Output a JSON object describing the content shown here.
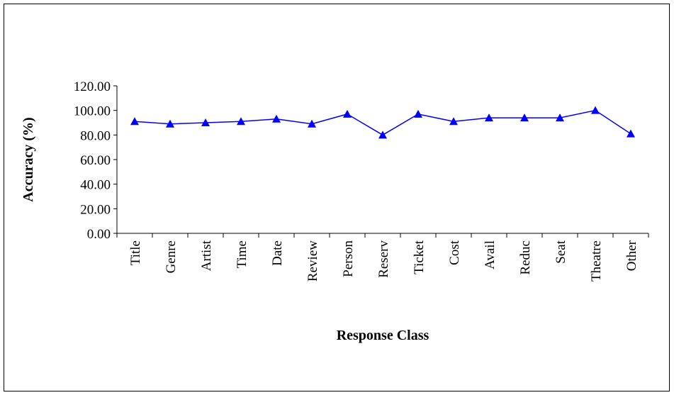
{
  "chart_data": {
    "type": "line",
    "x_label": "Response Class",
    "y_label": "Accuracy (%)",
    "categories": [
      "Title",
      "Genre",
      "Artist",
      "Time",
      "Date",
      "Review",
      "Person",
      "Reserv",
      "Ticket",
      "Cost",
      "Avail",
      "Reduc",
      "Seat",
      "Theatre",
      "Other"
    ],
    "series": [
      {
        "color": "#0000ff",
        "marker": "triangle",
        "values": [
          91,
          89,
          90,
          91,
          93,
          89,
          97,
          80,
          97,
          91,
          94,
          94,
          94,
          100,
          81
        ]
      }
    ],
    "ylim": [
      0,
      120
    ],
    "yticks": [
      {
        "value": 0,
        "label": "0.00"
      },
      {
        "value": 20,
        "label": "20.00"
      },
      {
        "value": 40,
        "label": "40.00"
      },
      {
        "value": 60,
        "label": "60.00"
      },
      {
        "value": 80,
        "label": "80.00"
      },
      {
        "value": 100,
        "label": "100.00"
      },
      {
        "value": 120,
        "label": "120.00"
      }
    ],
    "grid": false
  }
}
